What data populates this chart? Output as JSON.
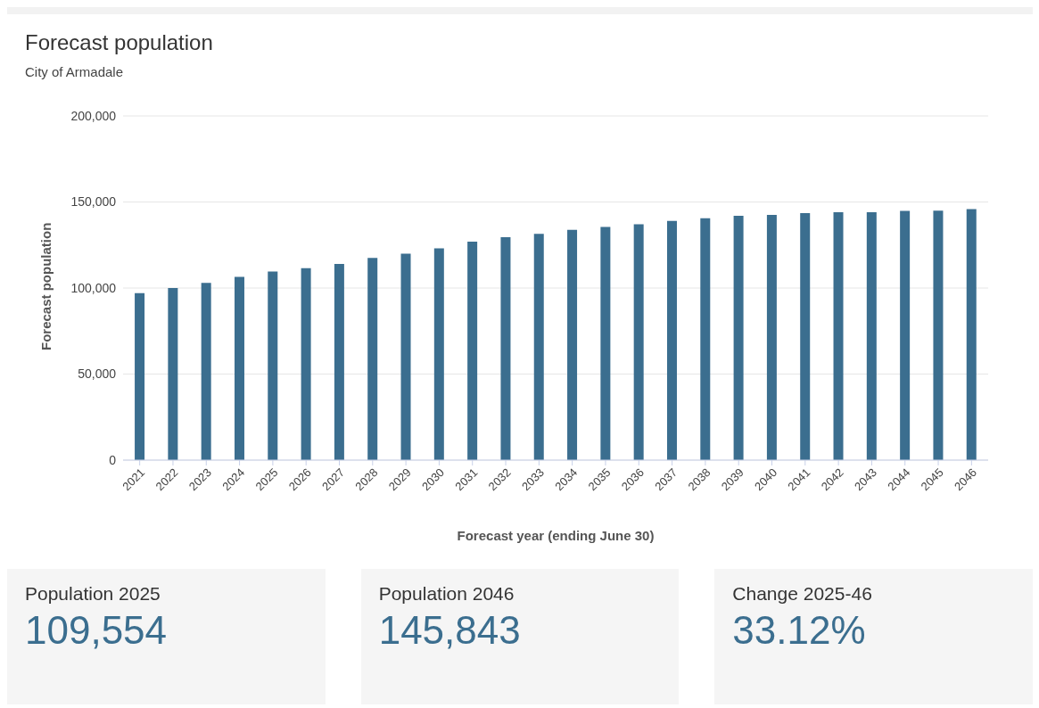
{
  "chart_data": [
    {
      "type": "bar",
      "title": "Forecast population",
      "subtitle": "City of Armadale",
      "xlabel": "Forecast year (ending June 30)",
      "ylabel": "Forecast population",
      "categories": [
        "2021",
        "2022",
        "2023",
        "2024",
        "2025",
        "2026",
        "2027",
        "2028",
        "2029",
        "2030",
        "2031",
        "2032",
        "2033",
        "2034",
        "2035",
        "2036",
        "2037",
        "2038",
        "2039",
        "2040",
        "2041",
        "2042",
        "2043",
        "2044",
        "2045",
        "2046"
      ],
      "values": [
        97000,
        100000,
        103000,
        106500,
        109554,
        111500,
        114000,
        117500,
        120000,
        123000,
        127000,
        129500,
        131500,
        133800,
        135500,
        137000,
        139000,
        140500,
        142000,
        142500,
        143500,
        144000,
        144000,
        144800,
        145000,
        145843
      ],
      "color": "#3b6e8f",
      "ylim": [
        0,
        200000
      ],
      "yticks": [
        {
          "value": 0,
          "label": "0"
        },
        {
          "value": 50000,
          "label": "50,000"
        },
        {
          "value": 100000,
          "label": "100,000"
        },
        {
          "value": 150000,
          "label": "150,000"
        },
        {
          "value": 200000,
          "label": "200,000"
        }
      ],
      "grid": "y"
    },
    {
      "type": "other",
      "title": "Population 2025",
      "annotations": [
        "109,554"
      ]
    },
    {
      "type": "other",
      "title": "Population 2046",
      "annotations": [
        "145,843"
      ]
    },
    {
      "type": "other",
      "title": "Change 2025-46",
      "annotations": [
        "33.12%"
      ]
    }
  ]
}
